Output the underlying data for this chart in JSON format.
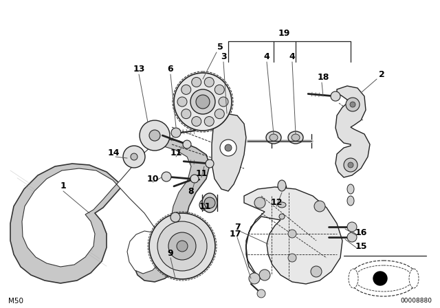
{
  "bg_color": "#ffffff",
  "line_color": "#222222",
  "bottom_left_text": "M50",
  "bottom_right_text": "00008880",
  "figsize": [
    6.4,
    4.48
  ],
  "dpi": 100,
  "belt_color": "#cccccc",
  "belt_stroke": "#333333",
  "part_color": "#dddddd",
  "part_stroke": "#222222"
}
